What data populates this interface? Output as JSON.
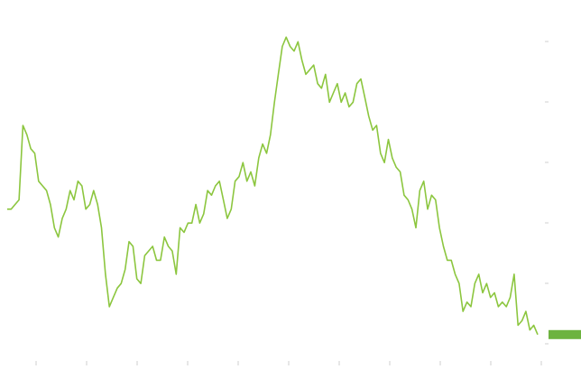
{
  "page": {
    "title": "",
    "footer_left": "",
    "footer_middle": "",
    "footer_right": ""
  },
  "colors": {
    "background": "#ffffff",
    "line": "#8cc63f",
    "last_value_bg": "#6db33f",
    "text": "#8a8a8a"
  },
  "chart_data": {
    "type": "line",
    "title": "",
    "xlabel": "",
    "ylabel": "",
    "x_tick_labels": [
      "",
      "",
      "",
      "",
      "",
      "",
      "",
      "",
      "",
      "",
      ""
    ],
    "y_tick_labels": [
      "",
      "",
      "",
      "",
      "",
      ""
    ],
    "ylim": [
      1.2,
      7.8
    ],
    "grid": false,
    "legend": "none",
    "last_value_label": "",
    "series": [
      {
        "values": [
          4.0,
          4.0,
          4.1,
          4.2,
          5.8,
          5.6,
          5.3,
          5.2,
          4.6,
          4.5,
          4.4,
          4.1,
          3.6,
          3.4,
          3.8,
          4.0,
          4.4,
          4.2,
          4.6,
          4.5,
          4.0,
          4.1,
          4.4,
          4.1,
          3.6,
          2.6,
          1.9,
          2.1,
          2.3,
          2.4,
          2.7,
          3.3,
          3.2,
          2.5,
          2.4,
          3.0,
          3.1,
          3.2,
          2.9,
          2.9,
          3.4,
          3.2,
          3.1,
          2.6,
          3.6,
          3.5,
          3.7,
          3.7,
          4.1,
          3.7,
          3.9,
          4.4,
          4.3,
          4.5,
          4.6,
          4.2,
          3.8,
          4.0,
          4.6,
          4.7,
          5.0,
          4.6,
          4.8,
          4.5,
          5.1,
          5.4,
          5.2,
          5.6,
          6.3,
          6.9,
          7.5,
          7.7,
          7.5,
          7.4,
          7.6,
          7.2,
          6.9,
          7.0,
          7.1,
          6.7,
          6.6,
          6.9,
          6.3,
          6.5,
          6.7,
          6.3,
          6.5,
          6.2,
          6.3,
          6.7,
          6.8,
          6.4,
          6.0,
          5.7,
          5.8,
          5.2,
          5.0,
          5.5,
          5.1,
          4.9,
          4.8,
          4.3,
          4.2,
          4.0,
          3.6,
          4.4,
          4.6,
          4.0,
          4.3,
          4.2,
          3.6,
          3.2,
          2.9,
          2.9,
          2.6,
          2.4,
          1.8,
          2.0,
          1.9,
          2.4,
          2.6,
          2.2,
          2.4,
          2.1,
          2.2,
          1.9,
          2.0,
          1.9,
          2.1,
          2.6,
          1.5,
          1.6,
          1.8,
          1.4,
          1.5,
          1.3
        ]
      }
    ]
  }
}
